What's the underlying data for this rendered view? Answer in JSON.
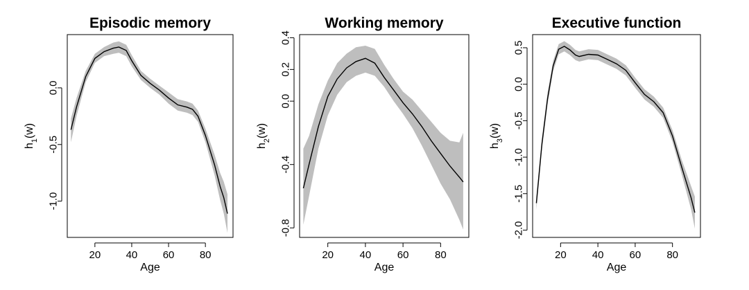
{
  "colors": {
    "band": "#bebebe",
    "line": "#000000",
    "background": "#ffffff"
  },
  "chart_data": [
    {
      "type": "line",
      "title": "Episodic memory",
      "xlabel": "Age",
      "ylabel": {
        "base": "h",
        "sub": "1",
        "rest": "(w)"
      },
      "xlim": [
        5,
        95
      ],
      "ylim": [
        -1.32,
        0.47
      ],
      "xticks": [
        20,
        40,
        60,
        80
      ],
      "yticks": [
        -1.0,
        -0.5,
        0.0
      ],
      "ytick_labels": [
        "-1.0",
        "-0.5",
        "0.0"
      ],
      "x": [
        7,
        10,
        15,
        20,
        25,
        30,
        33,
        37,
        40,
        45,
        50,
        55,
        60,
        65,
        70,
        73,
        76,
        80,
        85,
        88,
        90,
        92
      ],
      "y": [
        -0.37,
        -0.17,
        0.1,
        0.26,
        0.32,
        0.35,
        0.36,
        0.33,
        0.24,
        0.11,
        0.04,
        -0.02,
        -0.09,
        -0.15,
        -0.17,
        -0.19,
        -0.25,
        -0.42,
        -0.68,
        -0.87,
        -0.97,
        -1.11
      ],
      "lower": [
        -0.48,
        -0.25,
        0.05,
        0.22,
        0.28,
        0.3,
        0.31,
        0.28,
        0.19,
        0.07,
        0.0,
        -0.06,
        -0.14,
        -0.2,
        -0.22,
        -0.24,
        -0.3,
        -0.48,
        -0.77,
        -0.99,
        -1.11,
        -1.28
      ],
      "upper": [
        -0.27,
        -0.09,
        0.15,
        0.3,
        0.36,
        0.4,
        0.41,
        0.38,
        0.29,
        0.15,
        0.08,
        0.02,
        -0.04,
        -0.1,
        -0.12,
        -0.14,
        -0.2,
        -0.36,
        -0.59,
        -0.75,
        -0.83,
        -0.94
      ]
    },
    {
      "type": "line",
      "title": "Working memory",
      "xlabel": "Age",
      "ylabel": {
        "base": "h",
        "sub": "2",
        "rest": "(w)"
      },
      "xlim": [
        5,
        95
      ],
      "ylim": [
        -0.86,
        0.42
      ],
      "xticks": [
        20,
        40,
        60,
        80
      ],
      "yticks": [
        -0.8,
        -0.4,
        0.0,
        0.2,
        0.4
      ],
      "ytick_labels": [
        "-0.8",
        "-0.4",
        "0.0",
        "0.2",
        "0.4"
      ],
      "x": [
        7,
        10,
        15,
        20,
        25,
        30,
        35,
        40,
        45,
        50,
        55,
        60,
        65,
        70,
        75,
        80,
        85,
        90,
        92
      ],
      "y": [
        -0.55,
        -0.4,
        -0.16,
        0.03,
        0.14,
        0.21,
        0.25,
        0.27,
        0.24,
        0.15,
        0.07,
        -0.01,
        -0.08,
        -0.16,
        -0.25,
        -0.33,
        -0.41,
        -0.48,
        -0.51
      ],
      "lower": [
        -0.78,
        -0.6,
        -0.3,
        -0.09,
        0.04,
        0.12,
        0.16,
        0.18,
        0.16,
        0.09,
        0.0,
        -0.08,
        -0.17,
        -0.28,
        -0.4,
        -0.52,
        -0.62,
        -0.75,
        -0.81
      ],
      "upper": [
        -0.3,
        -0.22,
        -0.02,
        0.13,
        0.24,
        0.3,
        0.34,
        0.35,
        0.33,
        0.23,
        0.14,
        0.06,
        0.01,
        -0.06,
        -0.13,
        -0.2,
        -0.25,
        -0.26,
        -0.2
      ]
    },
    {
      "type": "line",
      "title": "Executive function",
      "xlabel": "Age",
      "ylabel": {
        "base": "h",
        "sub": "3",
        "rest": "(w)"
      },
      "xlim": [
        5,
        95
      ],
      "ylim": [
        -2.1,
        0.68
      ],
      "xticks": [
        20,
        40,
        60,
        80
      ],
      "yticks": [
        -2.0,
        -1.5,
        -1.0,
        -0.5,
        0.0,
        0.5
      ],
      "ytick_labels": [
        "-2.0",
        "-1.5",
        "-1.0",
        "-0.5",
        "0.0",
        "0.5"
      ],
      "x": [
        7,
        10,
        13,
        16,
        19,
        22,
        25,
        28,
        30,
        35,
        40,
        45,
        50,
        55,
        60,
        65,
        70,
        75,
        80,
        85,
        90,
        92
      ],
      "y": [
        -1.63,
        -0.82,
        -0.2,
        0.25,
        0.48,
        0.52,
        0.47,
        0.4,
        0.38,
        0.41,
        0.4,
        0.34,
        0.28,
        0.19,
        0.02,
        -0.14,
        -0.24,
        -0.39,
        -0.71,
        -1.14,
        -1.56,
        -1.76
      ],
      "lower": [
        -1.72,
        -0.9,
        -0.28,
        0.18,
        0.41,
        0.45,
        0.4,
        0.33,
        0.31,
        0.34,
        0.33,
        0.27,
        0.21,
        0.12,
        -0.05,
        -0.21,
        -0.31,
        -0.46,
        -0.79,
        -1.24,
        -1.72,
        -1.98
      ],
      "upper": [
        -1.54,
        -0.74,
        -0.12,
        0.32,
        0.55,
        0.59,
        0.54,
        0.47,
        0.45,
        0.48,
        0.47,
        0.41,
        0.35,
        0.26,
        0.09,
        -0.07,
        -0.17,
        -0.32,
        -0.63,
        -1.04,
        -1.4,
        -1.54
      ]
    }
  ]
}
